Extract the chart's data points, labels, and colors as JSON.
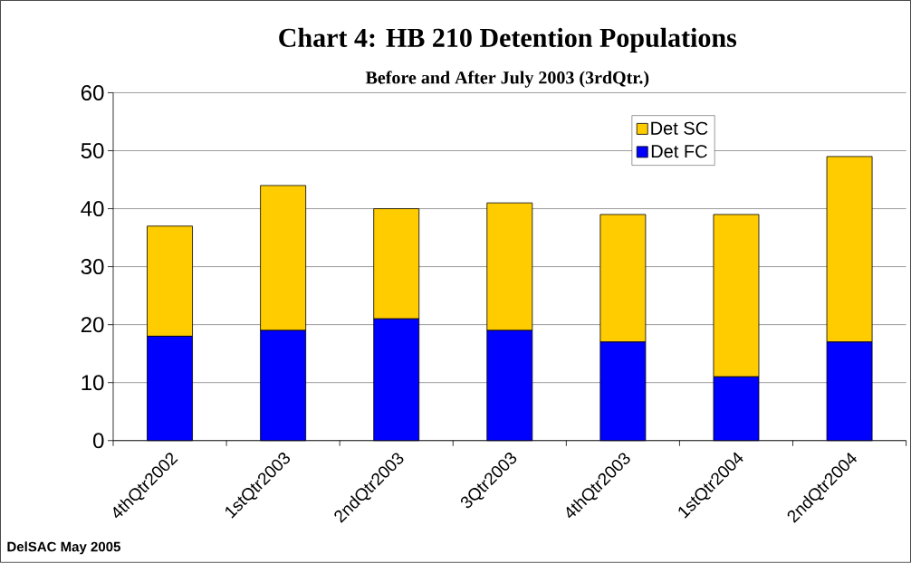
{
  "chart_data": {
    "type": "bar",
    "title": "Chart 4: HB 210 Detention Populations",
    "subtitle": "Before and After July 2003 (3rdQtr.)",
    "categories": [
      "4thQtr2002",
      "1stQtr2003",
      "2ndQtr2003",
      "3Qtr2003",
      "4thQtr2003",
      "1stQtr2004",
      "2ndQtr2004"
    ],
    "series": [
      {
        "name": "Det FC",
        "color": "#0000ff",
        "values": [
          18,
          19,
          21,
          19,
          17,
          11,
          17
        ]
      },
      {
        "name": "Det SC",
        "color": "#ffcc00",
        "values": [
          19,
          25,
          19,
          22,
          22,
          28,
          32
        ]
      }
    ],
    "stacked": true,
    "ylim": [
      0,
      60
    ],
    "yticks": [
      0,
      10,
      20,
      30,
      40,
      50,
      60
    ],
    "grid": "y",
    "legend": "top right",
    "annotations": [
      "DelSAC May 2005"
    ]
  }
}
